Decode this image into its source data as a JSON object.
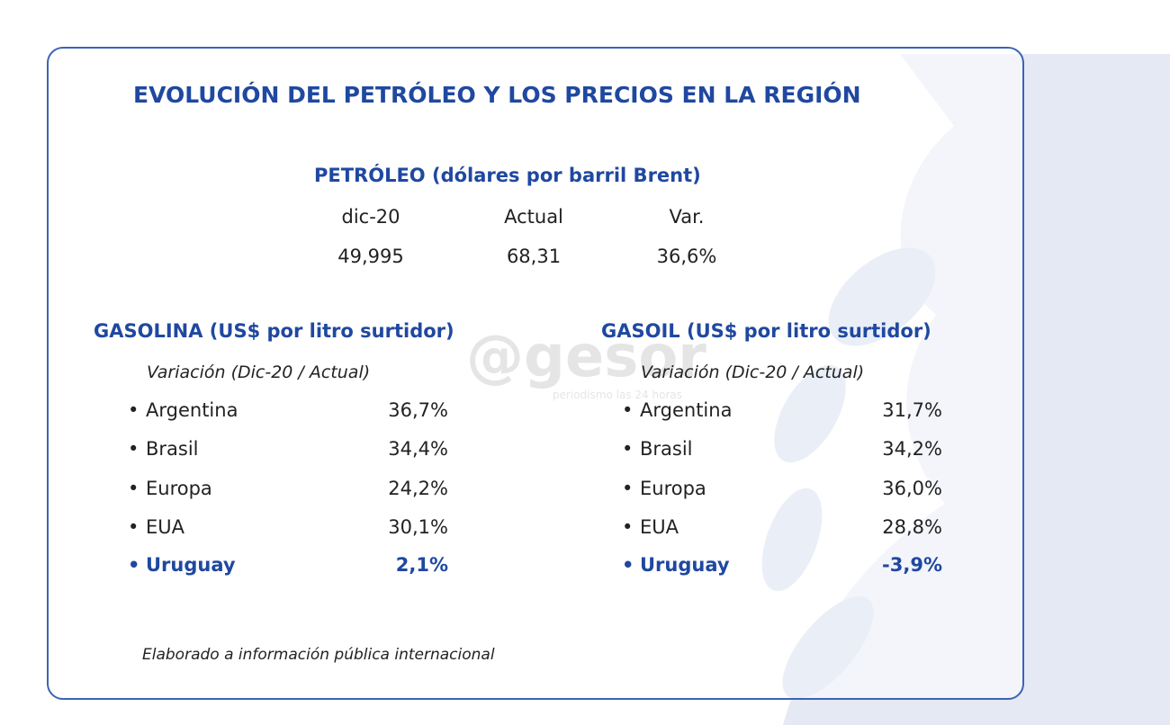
{
  "title": "EVOLUCIÓN DEL PETRÓLEO Y LOS PRECIOS EN LA REGIÓN",
  "petroleo": {
    "title": "PETRÓLEO (dólares por barril Brent)",
    "headers": [
      "dic-20",
      "Actual",
      "Var."
    ],
    "values": [
      "49,995",
      "68,31",
      "36,6%"
    ]
  },
  "gasolina": {
    "title": "GASOLINA (US$ por litro surtidor)",
    "subtitle": "Variación (Dic-20 / Actual)",
    "rows": [
      [
        "Argentina",
        "36,7%"
      ],
      [
        "Brasil",
        "34,4%"
      ],
      [
        "Europa",
        "24,2%"
      ],
      [
        "EUA",
        "30,1%"
      ],
      [
        "Uruguay",
        "2,1%"
      ]
    ]
  },
  "gasoil": {
    "title": "GASOIL (US$ por litro surtidor)",
    "subtitle": "Variación (Dic-20 / Actual)",
    "rows": [
      [
        "Argentina",
        "31,7%"
      ],
      [
        "Brasil",
        "34,2%"
      ],
      [
        "Europa",
        "36,0%"
      ],
      [
        "EUA",
        "28,8%"
      ],
      [
        "Uruguay",
        "-3,9%"
      ]
    ]
  },
  "footer": "Elaborado a información pública internacional",
  "watermark": {
    "brand": "@gesor",
    "tagline": "periodismo las 24 horas"
  }
}
